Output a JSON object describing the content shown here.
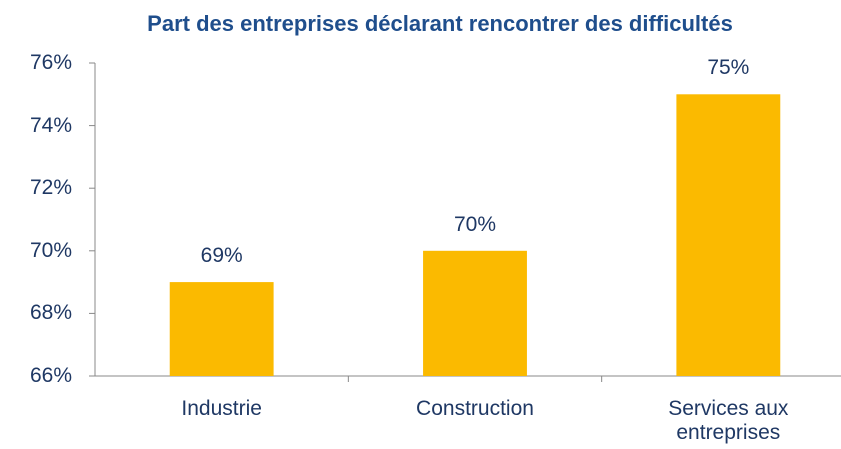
{
  "chart_data": {
    "type": "bar",
    "title": "Part des entreprises déclarant rencontrer des difficultés",
    "categories": [
      "Industrie",
      "Construction",
      "Services aux entreprises"
    ],
    "values": [
      69,
      70,
      75
    ],
    "value_labels": [
      "69%",
      "70%",
      "75%"
    ],
    "color": "#fbba00",
    "ylim": [
      66,
      76
    ],
    "yticks": [
      {
        "value": 66,
        "label": "66%"
      },
      {
        "value": 68,
        "label": "68%"
      },
      {
        "value": 70,
        "label": "70%"
      },
      {
        "value": 72,
        "label": "72%"
      },
      {
        "value": 74,
        "label": "74%"
      },
      {
        "value": 76,
        "label": "76%"
      }
    ],
    "grid": false
  }
}
